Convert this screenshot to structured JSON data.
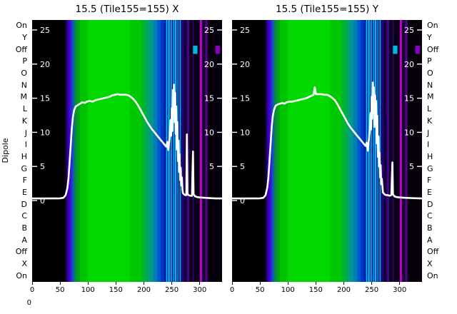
{
  "figure": {
    "corner_zero_label": "0"
  },
  "dipole_axis": {
    "label": "Dipole",
    "ticks": [
      "On",
      "Y",
      "Off",
      "P",
      "O",
      "N",
      "M",
      "L",
      "K",
      "J",
      "I",
      "H",
      "G",
      "F",
      "E",
      "D",
      "C",
      "B",
      "A",
      "Off",
      "X",
      "On"
    ]
  },
  "chart_data": {
    "type": "heatmap",
    "x_range": [
      0,
      340
    ],
    "x_ticks": [
      0,
      50,
      100,
      150,
      200,
      250,
      300
    ],
    "y_range": [
      0,
      25
    ],
    "y_ticks_left": [
      25,
      20,
      15,
      10,
      5,
      0
    ],
    "y_ticks_right": [
      25,
      20,
      15,
      10,
      5
    ],
    "line_color": "#ffffff",
    "background_stripes": [
      [
        0,
        58,
        "#000000"
      ],
      [
        58,
        62,
        "#0d0026"
      ],
      [
        62,
        66,
        "#3200b0"
      ],
      [
        66,
        69,
        "#4a00e0"
      ],
      [
        69,
        72,
        "#2030d0"
      ],
      [
        72,
        76,
        "#0b60a8"
      ],
      [
        76,
        80,
        "#0a8a38"
      ],
      [
        80,
        86,
        "#00a614"
      ],
      [
        86,
        100,
        "#00c400"
      ],
      [
        100,
        175,
        "#00d800"
      ],
      [
        175,
        195,
        "#00c800"
      ],
      [
        195,
        203,
        "#00b52a"
      ],
      [
        203,
        210,
        "#00a55e"
      ],
      [
        210,
        217,
        "#00968d"
      ],
      [
        217,
        224,
        "#007eb4"
      ],
      [
        224,
        230,
        "#0058cc"
      ],
      [
        230,
        236,
        "#0038cc"
      ],
      [
        236,
        240,
        "#0022a8"
      ],
      [
        240,
        242,
        "#00c8f0"
      ],
      [
        242,
        244,
        "#0030b0"
      ],
      [
        244,
        246,
        "#00e8ff"
      ],
      [
        246,
        248,
        "#0a1a90"
      ],
      [
        248,
        250,
        "#00baff"
      ],
      [
        250,
        252,
        "#001272"
      ],
      [
        252,
        254,
        "#00a2e8"
      ],
      [
        254,
        256,
        "#0042b8"
      ],
      [
        256,
        258,
        "#00d8ff"
      ],
      [
        258,
        260,
        "#001486"
      ],
      [
        260,
        262,
        "#0092dd"
      ],
      [
        262,
        264,
        "#000e62"
      ],
      [
        264,
        266,
        "#00b2f0"
      ],
      [
        266,
        269,
        "#101080"
      ],
      [
        269,
        272,
        "#28006e"
      ],
      [
        272,
        277,
        "#12003a"
      ],
      [
        277,
        281,
        "#4a0090"
      ],
      [
        281,
        287,
        "#0b001c"
      ],
      [
        287,
        290,
        "#2a0060"
      ],
      [
        290,
        300,
        "#070012"
      ],
      [
        300,
        304,
        "#c000d0"
      ],
      [
        304,
        310,
        "#14002c"
      ],
      [
        310,
        314,
        "#50008c"
      ],
      [
        314,
        340,
        "#05000a"
      ]
    ],
    "off_row_marks": [
      {
        "row_index": 2,
        "x0": 288,
        "x1": 296,
        "color": "#00b8d8"
      },
      {
        "row_index": 2,
        "x0": 328,
        "x1": 336,
        "color": "#8800c0"
      }
    ],
    "panels": [
      {
        "title": "15.5 (Tile155=155) X",
        "line_points": [
          [
            0,
            0.3
          ],
          [
            30,
            0.3
          ],
          [
            50,
            0.32
          ],
          [
            56,
            0.4
          ],
          [
            60,
            0.8
          ],
          [
            63,
            1.8
          ],
          [
            65,
            3.2
          ],
          [
            67,
            5.5
          ],
          [
            69,
            8.0
          ],
          [
            71,
            10.5
          ],
          [
            73,
            12.2
          ],
          [
            75,
            13.2
          ],
          [
            78,
            13.8
          ],
          [
            82,
            14.0
          ],
          [
            86,
            14.2
          ],
          [
            90,
            14.4
          ],
          [
            94,
            14.3
          ],
          [
            98,
            14.5
          ],
          [
            103,
            14.6
          ],
          [
            108,
            14.5
          ],
          [
            113,
            14.7
          ],
          [
            118,
            14.8
          ],
          [
            123,
            14.9
          ],
          [
            128,
            15.0
          ],
          [
            133,
            15.1
          ],
          [
            138,
            15.2
          ],
          [
            143,
            15.4
          ],
          [
            148,
            15.5
          ],
          [
            153,
            15.6
          ],
          [
            158,
            15.5
          ],
          [
            163,
            15.5
          ],
          [
            168,
            15.5
          ],
          [
            173,
            15.4
          ],
          [
            178,
            15.1
          ],
          [
            182,
            14.8
          ],
          [
            186,
            14.4
          ],
          [
            190,
            13.9
          ],
          [
            194,
            13.3
          ],
          [
            198,
            12.7
          ],
          [
            202,
            12.1
          ],
          [
            206,
            11.5
          ],
          [
            210,
            11.0
          ],
          [
            214,
            10.5
          ],
          [
            218,
            10.1
          ],
          [
            222,
            9.7
          ],
          [
            226,
            9.3
          ],
          [
            230,
            8.9
          ],
          [
            234,
            8.5
          ],
          [
            237,
            8.2
          ],
          [
            240,
            7.9
          ],
          [
            242,
            8.6
          ],
          [
            244,
            7.4
          ],
          [
            246,
            9.2
          ],
          [
            248,
            11.8
          ],
          [
            249,
            9.5
          ],
          [
            250,
            13.5
          ],
          [
            251,
            10.2
          ],
          [
            252,
            16.2
          ],
          [
            253,
            12.5
          ],
          [
            254,
            17.0
          ],
          [
            255,
            11.5
          ],
          [
            256,
            15.8
          ],
          [
            257,
            9.8
          ],
          [
            258,
            13.8
          ],
          [
            259,
            7.5
          ],
          [
            260,
            11.5
          ],
          [
            261,
            5.8
          ],
          [
            262,
            8.8
          ],
          [
            263,
            4.2
          ],
          [
            264,
            6.8
          ],
          [
            265,
            3.0
          ],
          [
            266,
            4.8
          ],
          [
            267,
            2.2
          ],
          [
            268,
            3.4
          ],
          [
            269,
            1.6
          ],
          [
            270,
            1.1
          ],
          [
            272,
            0.9
          ],
          [
            274,
            0.8
          ],
          [
            276,
            0.8
          ],
          [
            277,
            9.7
          ],
          [
            278,
            1.0
          ],
          [
            280,
            0.8
          ],
          [
            283,
            0.7
          ],
          [
            286,
            0.7
          ],
          [
            288,
            7.2
          ],
          [
            289,
            0.9
          ],
          [
            292,
            0.6
          ],
          [
            296,
            0.5
          ],
          [
            300,
            0.45
          ],
          [
            310,
            0.4
          ],
          [
            320,
            0.35
          ],
          [
            330,
            0.3
          ],
          [
            340,
            0.3
          ]
        ]
      },
      {
        "title": "15.5 (Tile155=155) Y",
        "line_points": [
          [
            0,
            0.3
          ],
          [
            30,
            0.3
          ],
          [
            50,
            0.32
          ],
          [
            56,
            0.4
          ],
          [
            60,
            0.8
          ],
          [
            63,
            1.9
          ],
          [
            65,
            3.4
          ],
          [
            67,
            5.8
          ],
          [
            69,
            8.3
          ],
          [
            71,
            10.8
          ],
          [
            73,
            12.4
          ],
          [
            75,
            13.3
          ],
          [
            78,
            13.9
          ],
          [
            82,
            14.1
          ],
          [
            86,
            14.2
          ],
          [
            90,
            14.3
          ],
          [
            94,
            14.2
          ],
          [
            98,
            14.4
          ],
          [
            103,
            14.5
          ],
          [
            108,
            14.5
          ],
          [
            113,
            14.6
          ],
          [
            118,
            14.7
          ],
          [
            123,
            14.8
          ],
          [
            128,
            14.9
          ],
          [
            133,
            15.0
          ],
          [
            138,
            15.2
          ],
          [
            143,
            15.4
          ],
          [
            146,
            15.5
          ],
          [
            148,
            16.6
          ],
          [
            150,
            15.6
          ],
          [
            155,
            15.6
          ],
          [
            160,
            15.6
          ],
          [
            165,
            15.5
          ],
          [
            170,
            15.5
          ],
          [
            175,
            15.3
          ],
          [
            180,
            15.0
          ],
          [
            184,
            14.7
          ],
          [
            188,
            14.2
          ],
          [
            192,
            13.6
          ],
          [
            196,
            13.0
          ],
          [
            200,
            12.4
          ],
          [
            204,
            11.8
          ],
          [
            208,
            11.2
          ],
          [
            212,
            10.7
          ],
          [
            216,
            10.3
          ],
          [
            220,
            9.9
          ],
          [
            224,
            9.5
          ],
          [
            228,
            9.1
          ],
          [
            232,
            8.7
          ],
          [
            236,
            8.3
          ],
          [
            239,
            8.0
          ],
          [
            241,
            8.5
          ],
          [
            243,
            7.3
          ],
          [
            245,
            9.0
          ],
          [
            247,
            10.9
          ],
          [
            248,
            12.8
          ],
          [
            249,
            10.4
          ],
          [
            250,
            15.2
          ],
          [
            251,
            12.0
          ],
          [
            252,
            17.3
          ],
          [
            253,
            13.0
          ],
          [
            254,
            16.6
          ],
          [
            255,
            10.8
          ],
          [
            256,
            15.4
          ],
          [
            257,
            12.2
          ],
          [
            258,
            14.6
          ],
          [
            259,
            8.4
          ],
          [
            260,
            12.4
          ],
          [
            261,
            6.4
          ],
          [
            262,
            9.4
          ],
          [
            263,
            5.0
          ],
          [
            264,
            7.0
          ],
          [
            265,
            3.4
          ],
          [
            266,
            5.2
          ],
          [
            267,
            2.4
          ],
          [
            268,
            3.2
          ],
          [
            270,
            1.2
          ],
          [
            273,
            0.9
          ],
          [
            276,
            0.8
          ],
          [
            279,
            0.8
          ],
          [
            282,
            0.7
          ],
          [
            285,
            0.8
          ],
          [
            287,
            5.6
          ],
          [
            288,
            0.9
          ],
          [
            291,
            0.6
          ],
          [
            295,
            0.5
          ],
          [
            300,
            0.45
          ],
          [
            310,
            0.4
          ],
          [
            325,
            0.35
          ],
          [
            340,
            0.3
          ]
        ]
      }
    ]
  }
}
